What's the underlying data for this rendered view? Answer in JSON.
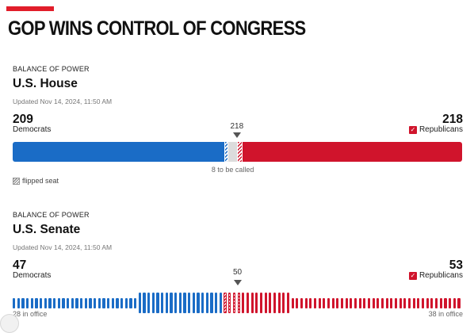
{
  "headline": "GOP WINS CONTROL OF CONGRESS",
  "house": {
    "kicker": "BALANCE OF POWER",
    "title": "U.S. House",
    "updated": "Updated Nov 14, 2024, 11:50 AM",
    "left_total": "209",
    "left_party": "Democrats",
    "right_total": "218",
    "right_party": "Republicans",
    "right_check": "✓",
    "majority_label": "218",
    "to_be_called": "8 to be called",
    "legend_label": "flipped seat",
    "total_seats": 435,
    "majority": 218,
    "dem_seats": 209,
    "dem_flipped": 3,
    "rep_seats": 218,
    "rep_flipped": 4,
    "uncalled": 8
  },
  "senate": {
    "kicker": "BALANCE OF POWER",
    "title": "U.S. Senate",
    "updated": "Updated Nov 14, 2024, 11:50 AM",
    "left_total": "47",
    "left_party": "Democrats",
    "right_total": "53",
    "right_party": "Republicans",
    "right_check": "✓",
    "majority_label": "50",
    "left_in_office": "28 in office",
    "right_in_office": "38 in office",
    "total_seats": 100,
    "dem_seats": 47,
    "dem_in_office": 28,
    "rep_seats": 53,
    "rep_flipped": 4,
    "rep_in_office": 38
  },
  "colors": {
    "accent": "#e11d2a",
    "democrat": "#1a6cc6",
    "republican": "#d0142c",
    "undecided": "#dcdcdc"
  },
  "icons": {
    "check": "check-icon",
    "legend": "hatch-swatch-icon",
    "majority": "triangle-down-icon"
  }
}
